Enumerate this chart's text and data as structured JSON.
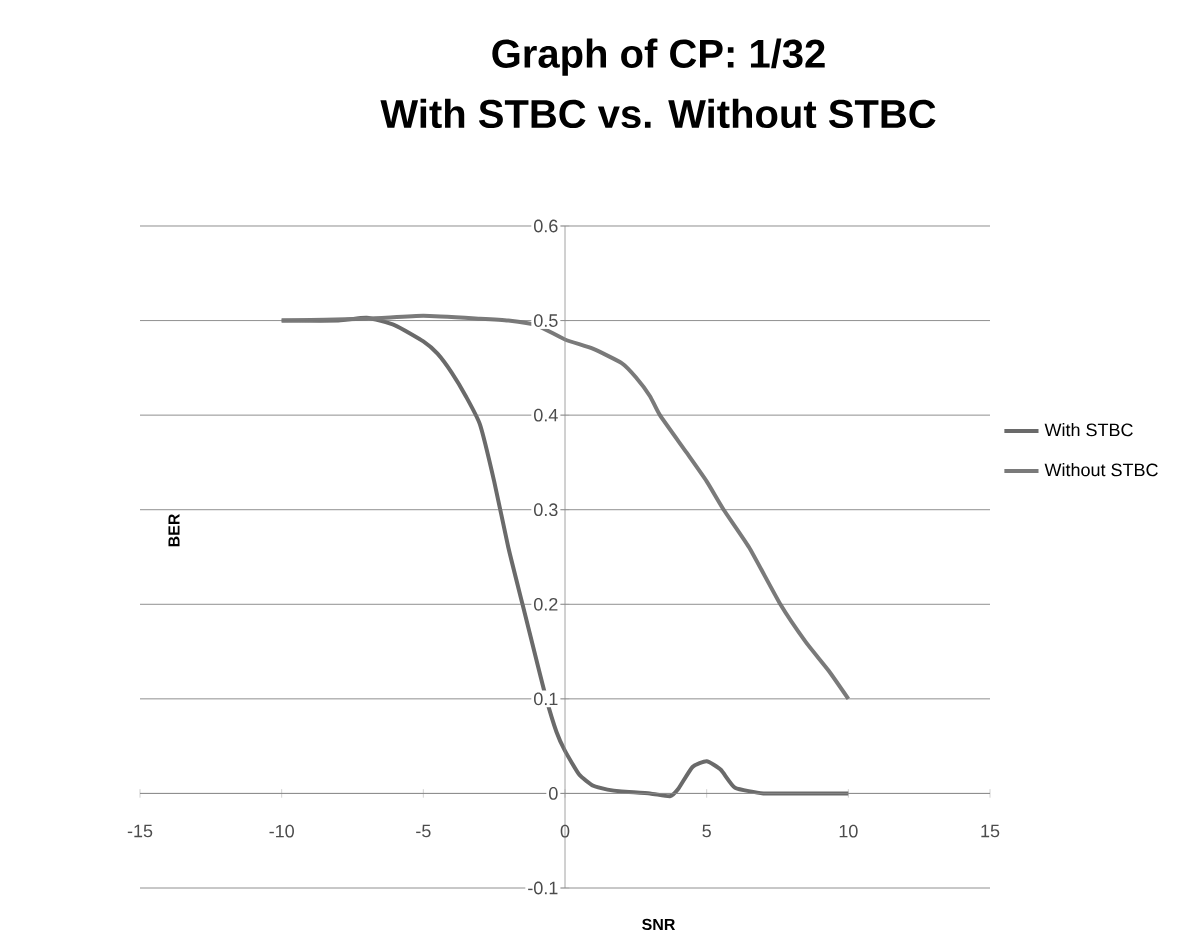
{
  "chart_data": {
    "type": "line",
    "title": "Graph of CP: 1/32",
    "subtitle": "With STBC vs. Without STBC",
    "xlabel": "SNR",
    "ylabel": "BER",
    "xlim": [
      -15,
      15
    ],
    "ylim": [
      -0.1,
      0.6
    ],
    "xticks": [
      -15,
      -10,
      -5,
      0,
      5,
      10,
      15
    ],
    "yticks": [
      -0.1,
      0,
      0.1,
      0.2,
      0.3,
      0.4,
      0.5,
      0.6
    ],
    "grid": "y",
    "legend": "right",
    "marker": "none",
    "line_style": "solid",
    "series": [
      {
        "name": "With STBC",
        "color": "#6a6a6a",
        "x": [
          -10,
          -8,
          -7,
          -6,
          -5,
          -4.5,
          -4,
          -3.5,
          -3,
          -2.5,
          -2,
          -1.5,
          -1,
          -0.66,
          -0.3,
          0,
          0.5,
          1,
          1.5,
          2,
          3,
          3.7,
          4,
          4.5,
          5,
          5.5,
          6,
          7,
          8,
          10
        ],
        "values": [
          0.5,
          0.5,
          0.503,
          0.495,
          0.478,
          0.465,
          0.445,
          0.42,
          0.39,
          0.33,
          0.26,
          0.2,
          0.14,
          0.1,
          0.065,
          0.045,
          0.02,
          0.008,
          0.004,
          0.002,
          0,
          -0.003,
          0.005,
          0.028,
          0.034,
          0.025,
          0.006,
          0,
          0,
          0
        ]
      },
      {
        "name": "Without STBC",
        "color": "#7a7a7a",
        "x": [
          -10,
          -7,
          -5,
          -3,
          -2,
          -1,
          0,
          1,
          2,
          2.5,
          3,
          3.35,
          4.3,
          5,
          5.6,
          6.5,
          7.6,
          8.5,
          9.3,
          10
        ],
        "values": [
          0.5,
          0.502,
          0.505,
          0.502,
          0.5,
          0.495,
          0.48,
          0.47,
          0.455,
          0.44,
          0.42,
          0.4,
          0.36,
          0.33,
          0.3,
          0.26,
          0.2,
          0.16,
          0.13,
          0.1
        ]
      }
    ]
  }
}
